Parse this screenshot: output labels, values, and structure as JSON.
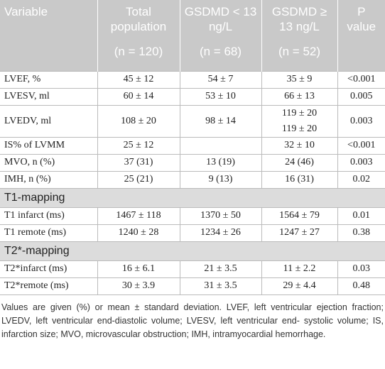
{
  "table": {
    "header": [
      {
        "label": "Variable",
        "n": null
      },
      {
        "label": "Total population",
        "n": "(n = 120)"
      },
      {
        "label": "GSDMD < 13 ng/L",
        "n": "(n = 68)"
      },
      {
        "label": "GSDMD ≥ 13 ng/L",
        "n": "(n = 52)"
      },
      {
        "label": "P value",
        "n": null
      }
    ],
    "sections": [
      {
        "title": null,
        "rows": [
          [
            "LVEF, %",
            "45 ± 12",
            "54 ± 7",
            "35 ± 9",
            "<0.001"
          ],
          [
            "LVESV, ml",
            "60 ± 14",
            "53 ± 10",
            "66 ± 13",
            "0.005"
          ],
          [
            "LVEDV, ml",
            "108 ± 20",
            "98 ± 14",
            [
              "119 ± 20",
              "119 ± 20"
            ],
            "0.003"
          ],
          [
            "IS% of LVMM",
            "25 ± 12",
            null,
            "32 ± 10",
            "<0.001"
          ],
          [
            "MVO, n (%)",
            "37 (31)",
            "13 (19)",
            "24 (46)",
            "0.003"
          ],
          [
            "IMH, n (%)",
            "25 (21)",
            "9 (13)",
            "16 (31)",
            "0.02"
          ]
        ]
      },
      {
        "title": "T1-mapping",
        "rows": [
          [
            "T1 infarct (ms)",
            "1467 ± 118",
            "1370 ± 50",
            "1564 ± 79",
            "0.01"
          ],
          [
            "T1 remote (ms)",
            "1240 ± 28",
            "1234 ± 26",
            "1247 ± 27",
            "0.38"
          ]
        ]
      },
      {
        "title": "T2*-mapping",
        "rows": [
          [
            "T2*infarct (ms)",
            "16 ± 6.1",
            "21 ± 3.5",
            "11 ± 2.2",
            "0.03"
          ],
          [
            "T2*remote (ms)",
            "30 ± 3.9",
            "31 ± 3.5",
            "29 ± 4.4",
            "0.48"
          ]
        ]
      }
    ],
    "footnote": "Values are given (%) or mean ± standard deviation. LVEF, left ventricular ejection fraction; LVEDV, left ventricular end-diastolic volume; LVESV, left ventricular end- systolic volume; IS, infarction size; MVO, microvascular obstruction; IMH, intramyocardial hemorrhage."
  }
}
